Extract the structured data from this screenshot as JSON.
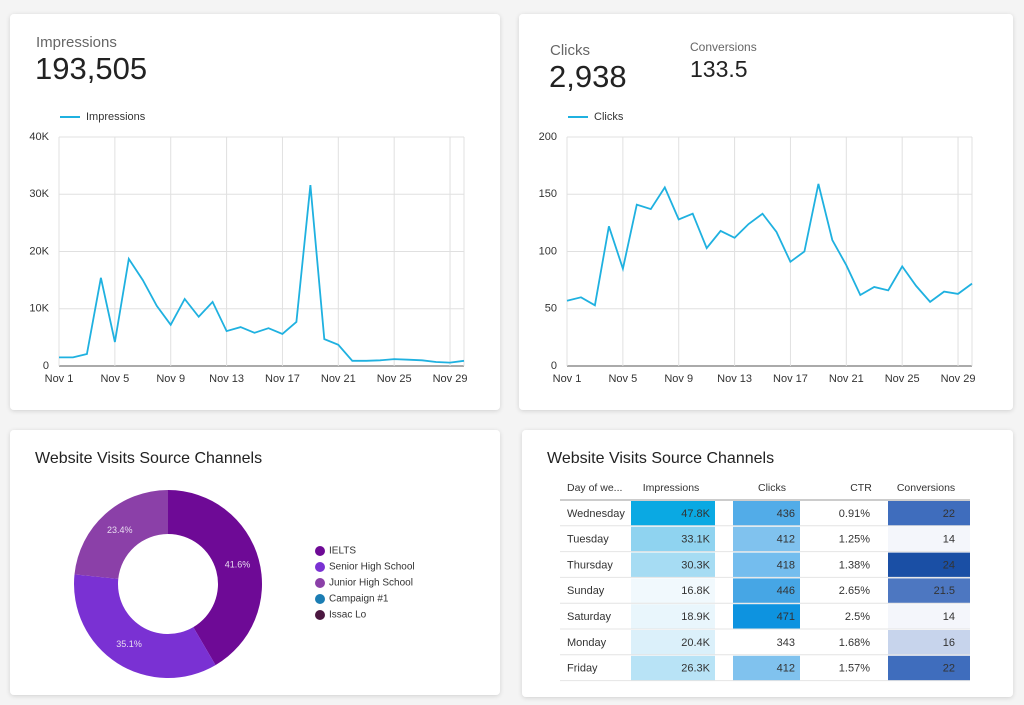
{
  "kpis": [
    {
      "label": "Impressions",
      "value": "193,505"
    },
    {
      "label": "Clicks",
      "value": "2,938"
    },
    {
      "label": "Conversions",
      "value": "133.5"
    }
  ],
  "chart_data": [
    {
      "type": "line",
      "categories": [
        "Nov 1",
        null,
        null,
        null,
        "Nov 5",
        null,
        null,
        null,
        "Nov 9",
        null,
        null,
        null,
        "Nov 13",
        null,
        null,
        null,
        "Nov 17",
        null,
        null,
        null,
        "Nov 21",
        null,
        null,
        null,
        "Nov 25",
        null,
        null,
        null,
        "Nov 29",
        null
      ],
      "series": [
        {
          "name": "Impressions",
          "color": "#1fb1e0",
          "values": [
            1500,
            1500,
            2100,
            15400,
            4200,
            18700,
            15000,
            10500,
            7200,
            11700,
            8600,
            11200,
            6100,
            6800,
            5800,
            6600,
            5600,
            7700,
            31600,
            4700,
            3700,
            900,
            900,
            1000,
            1200,
            1100,
            1000,
            700,
            600,
            900
          ]
        }
      ],
      "ylim": [
        0,
        40000
      ],
      "yticks": [
        0,
        {
          "value": 10000,
          "label": "10K"
        },
        {
          "value": 20000,
          "label": "20K"
        },
        {
          "value": 30000,
          "label": "30K"
        },
        {
          "value": 40000,
          "label": "40K"
        }
      ],
      "grid": true
    },
    {
      "type": "line",
      "categories": [
        "Nov 1",
        null,
        null,
        null,
        "Nov 5",
        null,
        null,
        null,
        "Nov 9",
        null,
        null,
        null,
        "Nov 13",
        null,
        null,
        null,
        "Nov 17",
        null,
        null,
        null,
        "Nov 21",
        null,
        null,
        null,
        "Nov 25",
        null,
        null,
        null,
        "Nov 29",
        null
      ],
      "series": [
        {
          "name": "Clicks",
          "color": "#1fb1e0",
          "values": [
            57,
            60,
            53,
            122,
            85,
            141,
            137,
            156,
            128,
            133,
            103,
            118,
            112,
            124,
            133,
            117,
            91,
            100,
            159,
            110,
            88,
            62,
            69,
            66,
            87,
            70,
            56,
            65,
            63,
            72
          ]
        }
      ],
      "ylim": [
        0,
        200
      ],
      "yticks": [
        0,
        50,
        100,
        150,
        200
      ],
      "grid": true
    },
    {
      "type": "pie",
      "title": "Website Visits Source Channels",
      "categories": [
        "IELTS",
        "Senior High School",
        "Junior High School",
        "Campaign #1",
        "Issac Lo"
      ],
      "values": [
        41.6,
        35.1,
        23.4,
        0,
        0
      ],
      "value_labels": [
        "41.6%",
        "35.1%",
        "23.4%",
        null,
        null
      ],
      "colors": [
        "#6e0a96",
        "#7a31d3",
        "#8b40a8",
        "#1b7db3",
        "#4b1840"
      ]
    }
  ],
  "table": {
    "title": "Website Visits Source Channels",
    "header": [
      "Day of we...",
      "Impressions",
      "Clicks",
      "CTR",
      "Conversions"
    ],
    "rows": [
      [
        "Wednesday",
        "47.8K",
        "436",
        "0.91%",
        "22"
      ],
      [
        "Tuesday",
        "33.1K",
        "412",
        "1.25%",
        "14"
      ],
      [
        "Thursday",
        "30.3K",
        "418",
        "1.38%",
        "24"
      ],
      [
        "Sunday",
        "16.8K",
        "446",
        "2.65%",
        "21.5"
      ],
      [
        "Saturday",
        "18.9K",
        "471",
        "2.5%",
        "14"
      ],
      [
        "Monday",
        "20.4K",
        "343",
        "1.68%",
        "16"
      ],
      [
        "Friday",
        "26.3K",
        "412",
        "1.57%",
        "22"
      ]
    ],
    "cell_colors": [
      [
        null,
        "#0aa9e3",
        "#52ace8",
        null,
        "#3f6dbd"
      ],
      [
        null,
        "#8fd3f0",
        "#80c2ee",
        null,
        "#f4f6fb"
      ],
      [
        null,
        "#a6dcf3",
        "#74bdee",
        null,
        "#1a4fa5"
      ],
      [
        null,
        "#f1f9fd",
        "#46a6e5",
        null,
        "#4d77c1"
      ],
      [
        null,
        "#e9f6fc",
        "#0d93e0",
        null,
        "#f4f6fb"
      ],
      [
        null,
        "#dbf0fa",
        "#ffffff",
        null,
        "#c7d4ec"
      ],
      [
        null,
        "#b8e3f6",
        "#80c2ee",
        null,
        "#3f6dbd"
      ]
    ]
  }
}
